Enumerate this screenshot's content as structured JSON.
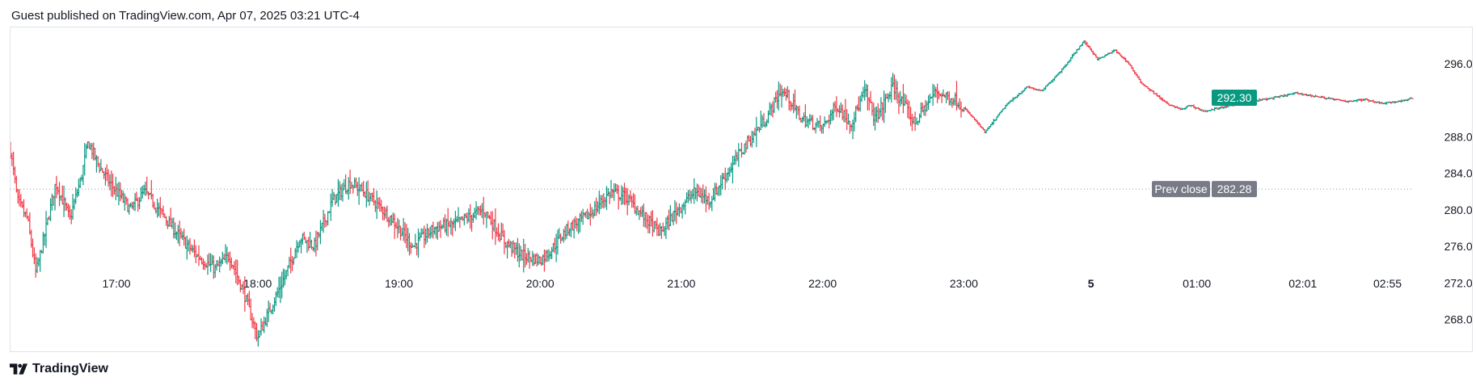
{
  "header": {
    "published_text": "Guest published on TradingView.com, Apr 07, 2025 03:21 UTC-4"
  },
  "footer": {
    "brand": "TradingView",
    "logo_icon": "tradingview-logo-icon"
  },
  "colors": {
    "up": "#089981",
    "down": "#f23645",
    "grid_dotted": "#9598a1",
    "current_price_bg": "#089981",
    "prev_close_bg": "#787b86"
  },
  "chart_data": {
    "type": "ohlc-bar",
    "ylim": [
      264.5,
      300
    ],
    "y_ticks": [
      "268.00",
      "272.00",
      "276.00",
      "280.00",
      "284.00",
      "288.00",
      "296.00"
    ],
    "x_ticks": [
      {
        "label": "17:00",
        "t": 0.75
      },
      {
        "label": "18:00",
        "t": 1.75
      },
      {
        "label": "19:00",
        "t": 2.75
      },
      {
        "label": "20:00",
        "t": 3.75
      },
      {
        "label": "21:00",
        "t": 4.75
      },
      {
        "label": "22:00",
        "t": 5.75
      },
      {
        "label": "23:00",
        "t": 6.75
      },
      {
        "label": "5",
        "t": 7.65,
        "bold": true
      },
      {
        "label": "01:00",
        "t": 8.4
      },
      {
        "label": "02:01",
        "t": 9.15
      },
      {
        "label": "02:55",
        "t": 9.75
      }
    ],
    "current_price": {
      "label": "292.30",
      "value": 292.3
    },
    "prev_close": {
      "label": "Prev close",
      "value_label": "282.28",
      "value": 282.28
    },
    "t_range": [
      0,
      9.93
    ],
    "session_split_t": 6.75,
    "close_keypoints": [
      [
        0.0,
        286.5
      ],
      [
        0.05,
        281.0
      ],
      [
        0.12,
        279.0
      ],
      [
        0.18,
        273.0
      ],
      [
        0.28,
        280.0
      ],
      [
        0.32,
        283.0
      ],
      [
        0.42,
        279.0
      ],
      [
        0.5,
        283.5
      ],
      [
        0.55,
        287.5
      ],
      [
        0.62,
        285.0
      ],
      [
        0.7,
        283.0
      ],
      [
        0.85,
        280.0
      ],
      [
        0.95,
        282.0
      ],
      [
        1.05,
        280.0
      ],
      [
        1.2,
        277.0
      ],
      [
        1.32,
        275.0
      ],
      [
        1.45,
        273.5
      ],
      [
        1.55,
        275.0
      ],
      [
        1.65,
        271.0
      ],
      [
        1.75,
        266.0
      ],
      [
        1.82,
        268.5
      ],
      [
        1.95,
        273.0
      ],
      [
        2.05,
        277.0
      ],
      [
        2.15,
        276.0
      ],
      [
        2.28,
        281.0
      ],
      [
        2.4,
        283.0
      ],
      [
        2.5,
        282.0
      ],
      [
        2.6,
        280.5
      ],
      [
        2.7,
        279.0
      ],
      [
        2.85,
        276.0
      ],
      [
        3.0,
        278.0
      ],
      [
        3.15,
        278.5
      ],
      [
        3.35,
        280.0
      ],
      [
        3.5,
        276.5
      ],
      [
        3.62,
        275.0
      ],
      [
        3.75,
        274.5
      ],
      [
        3.82,
        275.5
      ],
      [
        3.95,
        278.0
      ],
      [
        4.1,
        279.5
      ],
      [
        4.25,
        282.0
      ],
      [
        4.35,
        281.5
      ],
      [
        4.5,
        279.0
      ],
      [
        4.6,
        277.5
      ],
      [
        4.72,
        280.0
      ],
      [
        4.85,
        282.0
      ],
      [
        4.95,
        281.0
      ],
      [
        5.05,
        283.5
      ],
      [
        5.2,
        287.0
      ],
      [
        5.35,
        290.0
      ],
      [
        5.45,
        293.0
      ],
      [
        5.5,
        292.5
      ],
      [
        5.6,
        290.0
      ],
      [
        5.75,
        289.0
      ],
      [
        5.85,
        291.5
      ],
      [
        5.95,
        289.5
      ],
      [
        6.05,
        293.0
      ],
      [
        6.12,
        290.0
      ],
      [
        6.25,
        293.5
      ],
      [
        6.4,
        289.5
      ],
      [
        6.55,
        293.0
      ],
      [
        6.7,
        292.0
      ],
      [
        6.82,
        290.0
      ],
      [
        6.9,
        288.5
      ],
      [
        7.05,
        291.5
      ],
      [
        7.2,
        293.5
      ],
      [
        7.3,
        293.0
      ],
      [
        7.45,
        295.5
      ],
      [
        7.6,
        298.5
      ],
      [
        7.7,
        296.5
      ],
      [
        7.82,
        297.5
      ],
      [
        7.92,
        296.0
      ],
      [
        8.0,
        294.0
      ],
      [
        8.08,
        293.0
      ],
      [
        8.2,
        291.5
      ],
      [
        8.3,
        291.0
      ],
      [
        8.35,
        291.5
      ],
      [
        8.45,
        290.8
      ],
      [
        8.6,
        291.3
      ],
      [
        8.75,
        291.8
      ],
      [
        8.95,
        292.3
      ],
      [
        9.1,
        292.8
      ],
      [
        9.3,
        292.3
      ],
      [
        9.45,
        291.9
      ],
      [
        9.6,
        292.1
      ],
      [
        9.7,
        291.7
      ],
      [
        9.85,
        291.9
      ],
      [
        9.93,
        292.3
      ]
    ]
  }
}
